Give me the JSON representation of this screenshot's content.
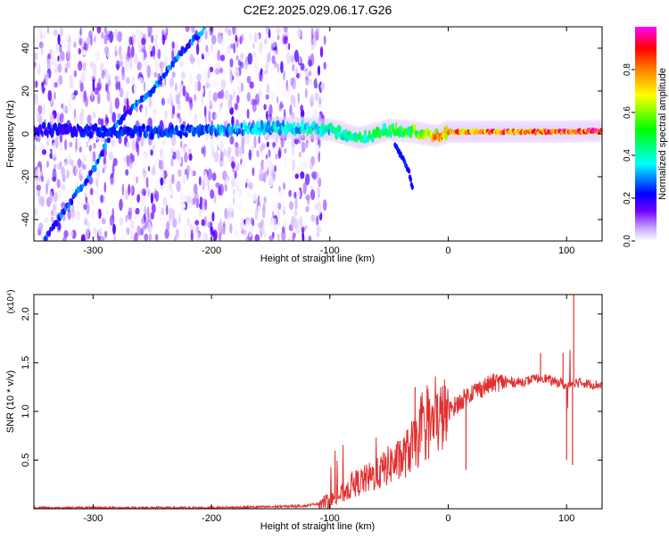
{
  "figure_title": "C2E2.2025.029.06.17.G26",
  "chart_data": [
    {
      "type": "heatmap",
      "xlabel": "Height of straight line (km)",
      "ylabel": "Frequency (Hz)",
      "xlim": [
        -350,
        130
      ],
      "ylim": [
        -50,
        50
      ],
      "x_ticks": [
        -300,
        -200,
        -100,
        0,
        100
      ],
      "y_ticks": [
        -40,
        -20,
        0,
        20,
        40
      ],
      "colorbar": {
        "label": "Normalized spectral amplitude",
        "range": [
          0.0,
          1.0
        ],
        "ticks": [
          0.0,
          0.2,
          0.4,
          0.6,
          0.8
        ],
        "tick_labels": [
          "0.0",
          "0.2",
          "0.4",
          "0.6",
          "0.8"
        ],
        "colormap": [
          "#ffffff",
          "#7000ff",
          "#0000ff",
          "#00ffff",
          "#00ff00",
          "#ffff00",
          "#ff8000",
          "#ff0000",
          "#ff00ff"
        ]
      },
      "features": {
        "noise_region_x": [
          -350,
          -112
        ],
        "diagonal_track": {
          "x": [
            -340,
            -300,
            -280,
            -250,
            -230,
            -205
          ],
          "y": [
            -48,
            -17,
            5,
            20,
            35,
            50
          ]
        },
        "main_ridge": {
          "x": [
            -350,
            -250,
            -150,
            -100,
            -75,
            -50,
            -30,
            -10,
            0,
            50,
            100,
            130
          ],
          "y": [
            2,
            1,
            3,
            2,
            -2,
            2,
            1,
            -1,
            1,
            1,
            1,
            1.5
          ],
          "amplitude": [
            0.25,
            0.3,
            0.4,
            0.45,
            0.5,
            0.55,
            0.6,
            0.8,
            0.85,
            0.9,
            0.95,
            0.95
          ]
        },
        "lower_branch": {
          "x": [
            -45,
            -38,
            -33,
            -30
          ],
          "y": [
            -5,
            -12,
            -18,
            -26
          ]
        }
      }
    },
    {
      "type": "line",
      "xlabel": "Height of straight line (km)",
      "ylabel": "SNR (10 * v/v)",
      "multiplier_label": "(x10⁴)",
      "xlim": [
        -350,
        130
      ],
      "ylim": [
        0,
        2.2
      ],
      "x_ticks": [
        -300,
        -200,
        -100,
        0,
        100
      ],
      "y_ticks": [
        0.5,
        1.0,
        1.5,
        2.0
      ],
      "y_tick_labels": [
        "0.5",
        "1.0",
        "1.5",
        "2.0"
      ],
      "color": "#e03030",
      "series": [
        {
          "x": [
            -350,
            -300,
            -250,
            -200,
            -150,
            -120,
            -100,
            -90,
            -80,
            -70,
            -60,
            -50,
            -40,
            -30,
            -20,
            -10,
            0,
            10,
            20,
            30,
            40,
            50,
            60,
            70,
            80,
            90,
            95,
            100,
            105,
            110,
            120,
            130
          ],
          "y": [
            0.01,
            0.01,
            0.01,
            0.01,
            0.02,
            0.03,
            0.08,
            0.15,
            0.25,
            0.3,
            0.35,
            0.45,
            0.5,
            0.65,
            0.8,
            0.9,
            1.0,
            1.1,
            1.2,
            1.25,
            1.3,
            1.3,
            1.3,
            1.32,
            1.35,
            1.3,
            1.3,
            1.25,
            1.3,
            1.3,
            1.28,
            1.27
          ],
          "spikes": [
            {
              "x": -28,
              "y": 1.25
            },
            {
              "x": -18,
              "y": 1.05
            },
            {
              "x": 15,
              "y": 0.4
            },
            {
              "x": 78,
              "y": 1.6
            },
            {
              "x": 97,
              "y": 1.6
            },
            {
              "x": 100,
              "y": 0.5
            },
            {
              "x": 105,
              "y": 0.45
            },
            {
              "x": 106,
              "y": 2.2
            }
          ]
        }
      ]
    }
  ]
}
